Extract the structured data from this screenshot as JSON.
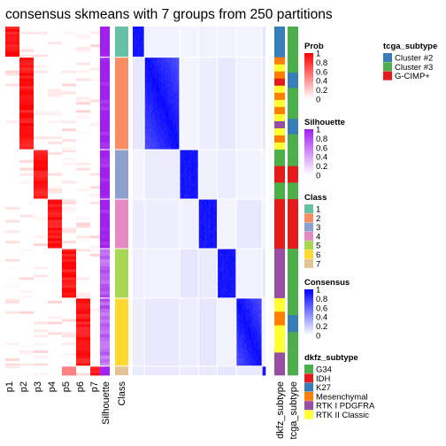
{
  "title": "consensus skmeans with 7 groups from 250 partitions",
  "chart_data": {
    "type": "heatmap",
    "title": "consensus skmeans with 7 groups from 250 partitions",
    "n_groups": 7,
    "n_partitions": 250,
    "columns": [
      "p1",
      "p2",
      "p3",
      "p4",
      "p5",
      "p6",
      "p7",
      "Silhouette",
      "Class"
    ],
    "right_annotations": [
      "dkfz_subtype",
      "tcga_subtype"
    ],
    "groups_in_row_order": [
      {
        "class": 1,
        "weight": 0.088
      },
      {
        "class": 2,
        "weight": 0.265
      },
      {
        "class": 3,
        "weight": 0.142
      },
      {
        "class": 4,
        "weight": 0.142
      },
      {
        "class": 5,
        "weight": 0.142
      },
      {
        "class": 6,
        "weight": 0.195
      },
      {
        "class": 7,
        "weight": 0.026
      }
    ],
    "legends": [
      {
        "title": "Prob",
        "type": "continuous",
        "ticks": [
          "1",
          "0.8",
          "0.6",
          "0.4",
          "0.2",
          "0"
        ],
        "colors": [
          "#ff0000",
          "#ffffff"
        ]
      },
      {
        "title": "Silhouette",
        "type": "continuous",
        "ticks": [
          "1",
          "0.8",
          "0.6",
          "0.4",
          "0.2",
          "0"
        ],
        "colors": [
          "#a020f0",
          "#ffffff"
        ]
      },
      {
        "title": "Class",
        "type": "discrete",
        "items": [
          {
            "label": "1",
            "color": "#66C2A5"
          },
          {
            "label": "2",
            "color": "#FC8D62"
          },
          {
            "label": "3",
            "color": "#8DA0CB"
          },
          {
            "label": "4",
            "color": "#E78AC3"
          },
          {
            "label": "5",
            "color": "#A6D854"
          },
          {
            "label": "6",
            "color": "#FFD92F"
          },
          {
            "label": "7",
            "color": "#E5C494"
          }
        ]
      },
      {
        "title": "Consensus",
        "type": "continuous",
        "ticks": [
          "1",
          "0.8",
          "0.6",
          "0.4",
          "0.2",
          "0"
        ],
        "colors": [
          "#0000ff",
          "#ffffff"
        ]
      },
      {
        "title": "dkfz_subtype",
        "type": "discrete",
        "items": [
          {
            "label": "G34",
            "color": "#4DAF4A"
          },
          {
            "label": "IDH",
            "color": "#E41A1C"
          },
          {
            "label": "K27",
            "color": "#377EB8"
          },
          {
            "label": "Mesenchymal",
            "color": "#FF7F00"
          },
          {
            "label": "RTK I PDGFRA",
            "color": "#984EA3"
          },
          {
            "label": "RTK II Classic",
            "color": "#FFFF33"
          }
        ]
      },
      {
        "title": "tcga_subtype",
        "type": "discrete",
        "items": [
          {
            "label": "Cluster #2",
            "color": "#377EB8"
          },
          {
            "label": "Cluster #3",
            "color": "#4DAF4A"
          },
          {
            "label": "G-CIMP+",
            "color": "#E41A1C"
          }
        ]
      }
    ]
  }
}
